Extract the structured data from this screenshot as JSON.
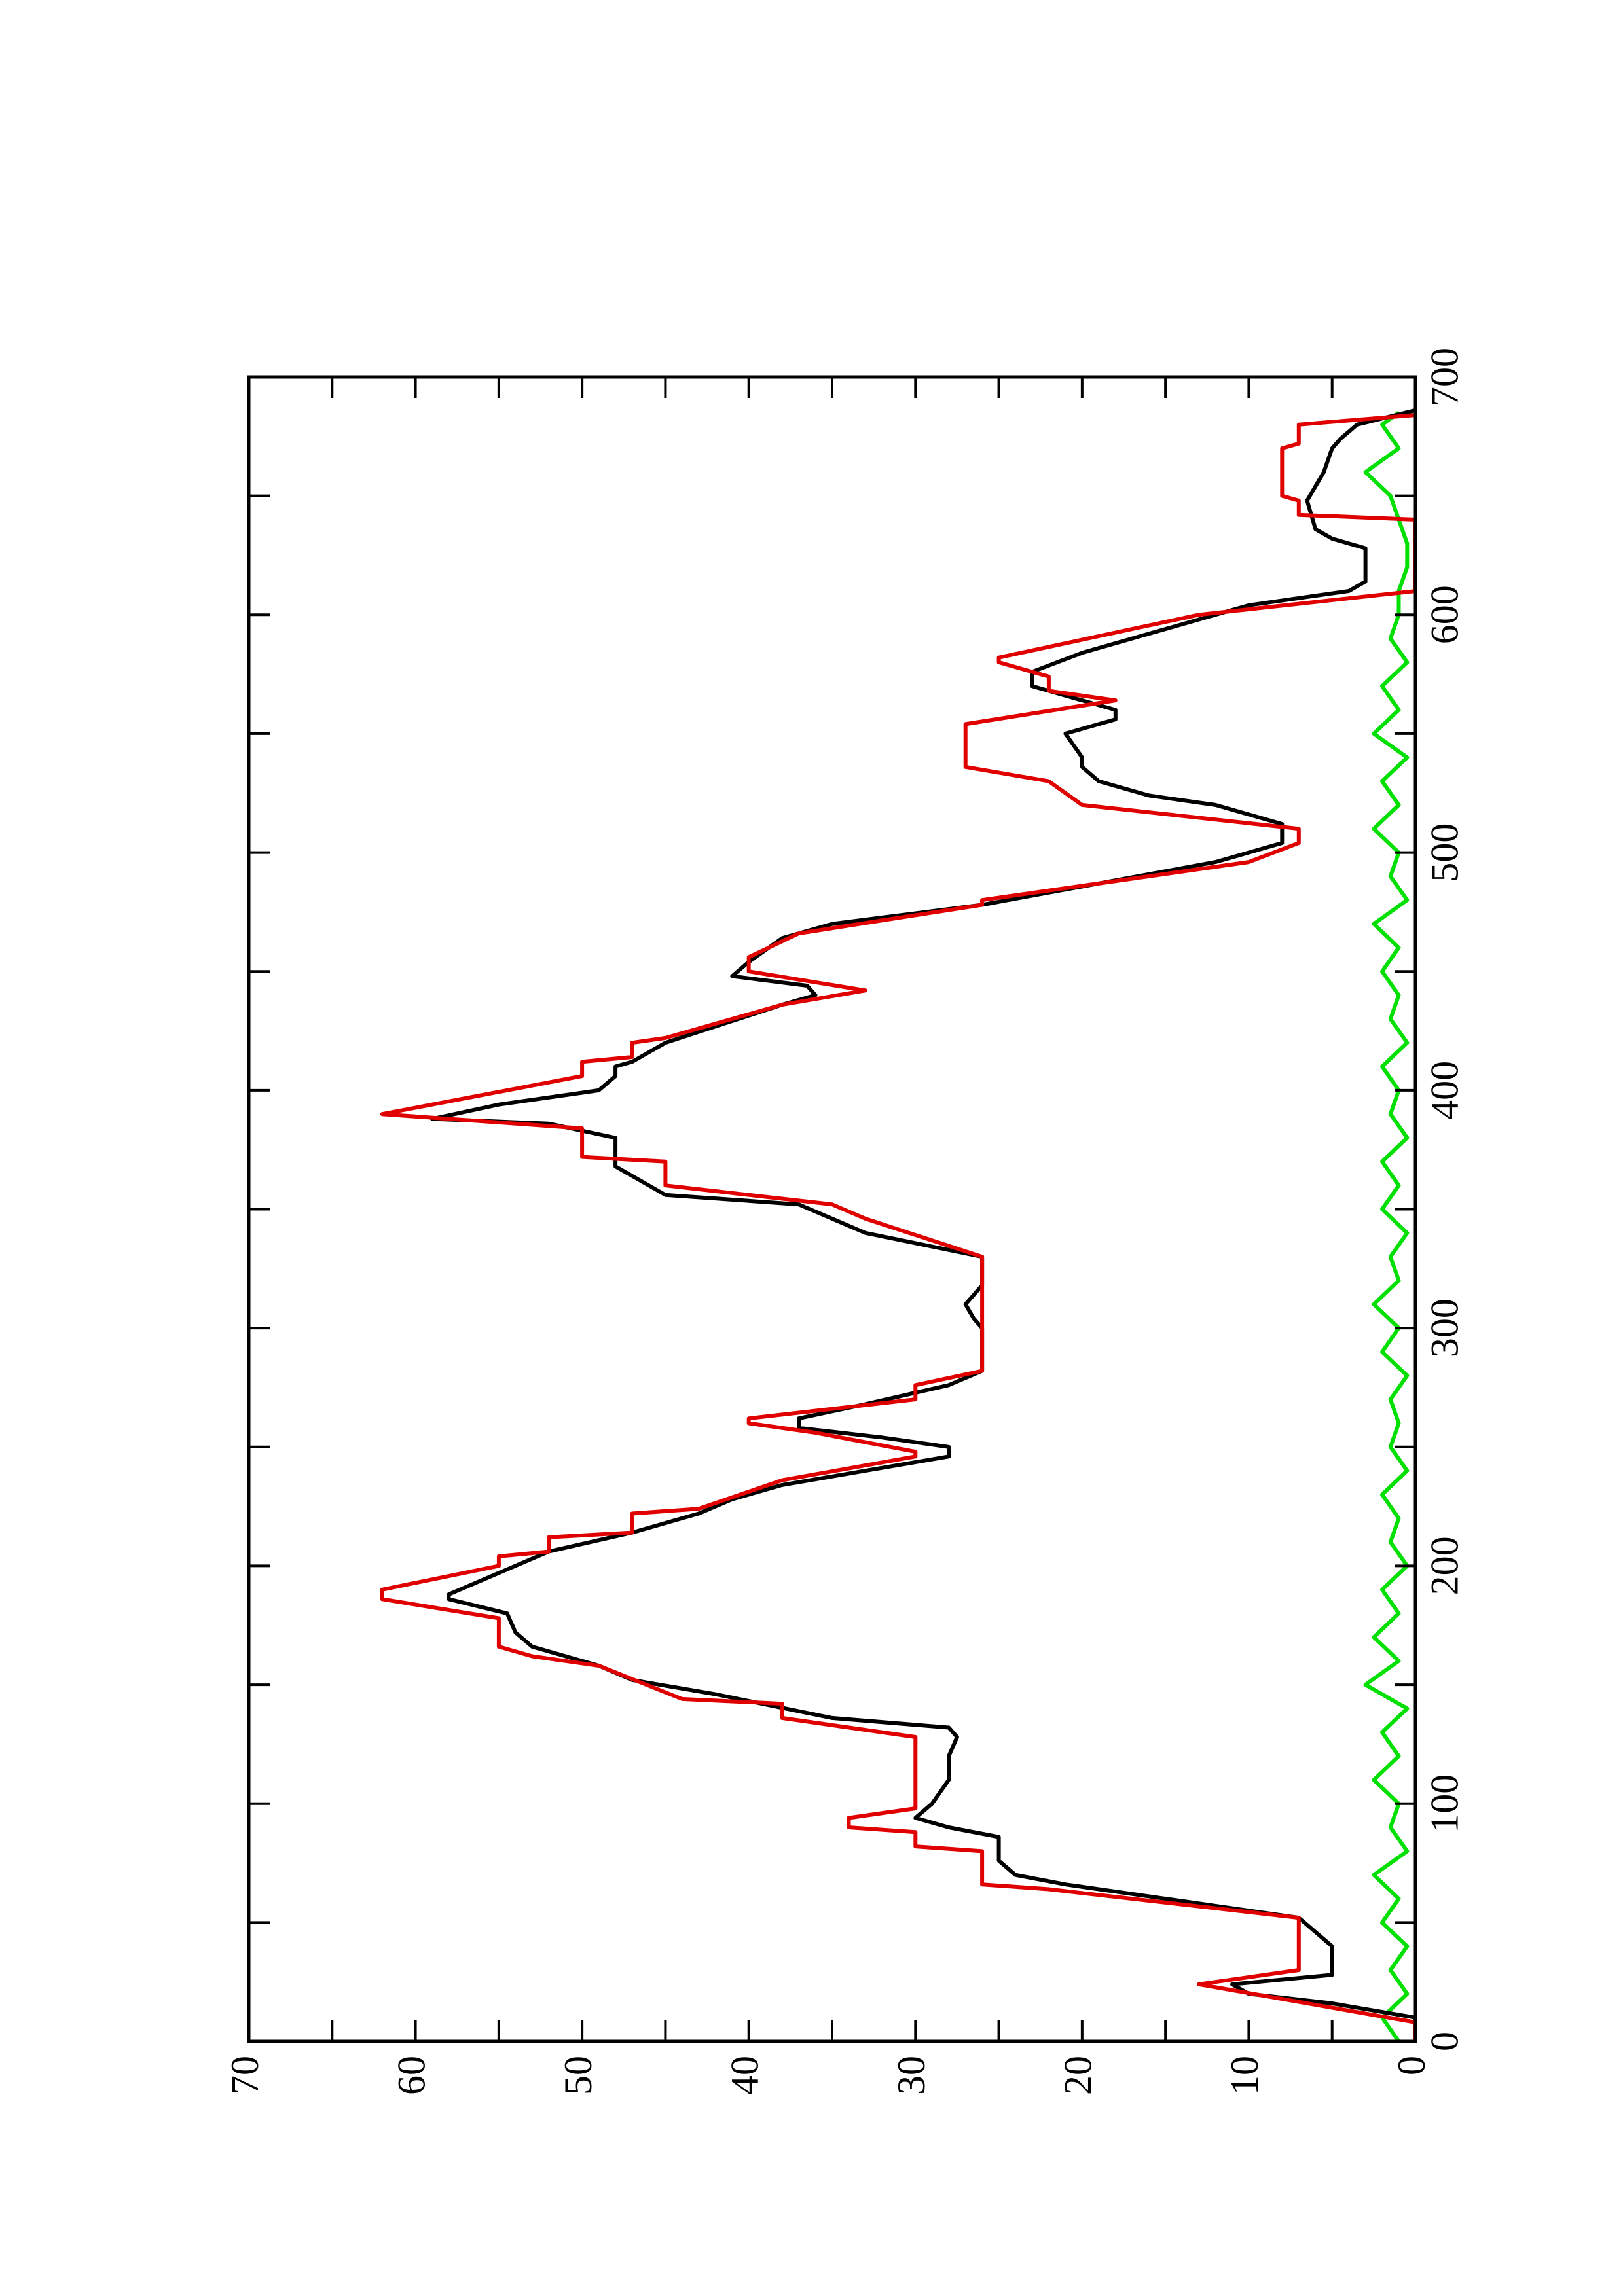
{
  "chart_data": {
    "type": "line",
    "xlim": [
      0,
      700
    ],
    "xticks": [
      0,
      100,
      200,
      300,
      400,
      500,
      600,
      700
    ],
    "xminorticks": [
      50,
      150,
      250,
      350,
      450,
      550,
      650
    ],
    "ylim": [
      0,
      70
    ],
    "yticks": [
      0,
      10,
      20,
      30,
      40,
      50,
      60,
      70
    ],
    "yminorticks": [
      5,
      15,
      25,
      35,
      45,
      55,
      65
    ],
    "rotated": true,
    "series": [
      {
        "color": "#00e000",
        "x": [
          0,
          10,
          20,
          30,
          40,
          50,
          60,
          70,
          80,
          90,
          100,
          110,
          120,
          130,
          140,
          150,
          160,
          170,
          180,
          190,
          200,
          210,
          220,
          230,
          240,
          250,
          260,
          270,
          280,
          290,
          300,
          310,
          320,
          330,
          340,
          350,
          360,
          370,
          380,
          390,
          400,
          410,
          420,
          430,
          440,
          450,
          460,
          470,
          480,
          490,
          500,
          510,
          520,
          530,
          540,
          550,
          560,
          570,
          580,
          590,
          600,
          610,
          620,
          630,
          640,
          650,
          660,
          670,
          680,
          685
        ],
        "values": [
          1,
          2,
          0.5,
          1.5,
          0.5,
          2,
          1,
          2.5,
          0.5,
          1.5,
          1,
          2.5,
          1,
          2,
          0.5,
          3,
          1,
          2.5,
          1,
          2,
          0.5,
          1.5,
          1,
          2,
          0.5,
          1.5,
          1,
          1.5,
          0.5,
          2,
          1,
          2.5,
          1,
          1.5,
          0.5,
          2,
          1,
          2,
          0.5,
          1.5,
          1,
          2,
          0.5,
          1.5,
          1,
          2,
          1,
          2.5,
          0.5,
          1.5,
          1,
          2.5,
          1,
          2,
          0.5,
          2.5,
          1,
          2,
          0.5,
          1.5,
          1,
          1,
          0.5,
          0.5,
          1,
          1.5,
          3,
          1,
          2,
          1
        ]
      },
      {
        "color": "#000000",
        "x": [
          0,
          10,
          16,
          20,
          24,
          28,
          40,
          46,
          52,
          66,
          70,
          76,
          86,
          90,
          94,
          100,
          110,
          120,
          128,
          132,
          136,
          146,
          152,
          158,
          166,
          172,
          180,
          186,
          188,
          200,
          206,
          214,
          222,
          228,
          234,
          240,
          246,
          250,
          254,
          258,
          262,
          268,
          276,
          282,
          290,
          300,
          304,
          310,
          318,
          330,
          340,
          352,
          356,
          360,
          368,
          380,
          386,
          388,
          394,
          400,
          406,
          410,
          412,
          420,
          436,
          440,
          444,
          448,
          454,
          464,
          470,
          478,
          496,
          504,
          512,
          516,
          520,
          524,
          530,
          536,
          540,
          550,
          556,
          560,
          570,
          576,
          584,
          594,
          600,
          604,
          608,
          610,
          614,
          628,
          632,
          636,
          648,
          660,
          670,
          674,
          680,
          686
        ],
        "values": [
          0,
          0,
          5,
          10,
          11,
          5,
          5,
          6,
          7,
          21,
          24,
          25,
          25,
          28,
          30,
          29,
          28,
          28,
          27.5,
          28,
          35,
          42,
          47,
          49,
          53,
          54,
          54.5,
          58,
          58,
          54,
          52,
          47,
          43,
          41,
          38,
          33,
          28,
          28,
          32,
          37,
          37,
          33,
          28,
          26,
          26,
          26,
          26.5,
          27,
          26,
          26,
          33,
          37,
          45,
          46,
          48,
          48,
          52,
          59,
          55,
          49,
          48,
          48,
          47,
          45,
          38,
          36,
          36.5,
          41,
          40,
          38,
          35,
          26,
          12,
          8,
          8,
          10,
          12,
          16,
          19,
          20,
          20,
          21,
          18,
          18,
          23,
          23,
          20,
          15,
          12,
          10,
          6,
          4,
          3,
          3,
          5,
          6,
          6.5,
          5.5,
          5,
          4.5,
          3.5,
          0
        ]
      },
      {
        "color": "#e00000",
        "x": [
          0,
          8,
          24,
          30,
          52,
          64,
          66,
          80,
          82,
          88,
          90,
          94,
          98,
          128,
          136,
          142,
          144,
          158,
          162,
          166,
          178,
          186,
          190,
          200,
          204,
          206,
          212,
          214,
          222,
          224,
          236,
          246,
          248,
          256,
          260,
          262,
          270,
          276,
          282,
          330,
          346,
          352,
          360,
          370,
          372,
          384,
          390,
          406,
          412,
          414,
          420,
          422,
          436,
          442,
          450,
          456,
          466,
          478,
          480,
          496,
          504,
          510,
          520,
          530,
          536,
          554,
          564,
          568,
          574,
          580,
          582,
          588,
          600,
          610,
          640,
          642,
          648,
          650,
          670,
          672,
          680,
          684
        ],
        "values": [
          0,
          0,
          13,
          7,
          7,
          22,
          26,
          26,
          30,
          30,
          34,
          34,
          30,
          30,
          38,
          38,
          44,
          49,
          53,
          55,
          55,
          62,
          62,
          55,
          55,
          52,
          52,
          47,
          47,
          43,
          38,
          30,
          30,
          36,
          40,
          40,
          30,
          30,
          26,
          26,
          33,
          35,
          45,
          45,
          50,
          50,
          62,
          50,
          50,
          47,
          47,
          45,
          38,
          33,
          40,
          40,
          37,
          26,
          26,
          10,
          7,
          7,
          20,
          22,
          27,
          27,
          18,
          22,
          22,
          25,
          25,
          21,
          13,
          0,
          0,
          7,
          7,
          8,
          8,
          7,
          7,
          0
        ]
      }
    ]
  }
}
